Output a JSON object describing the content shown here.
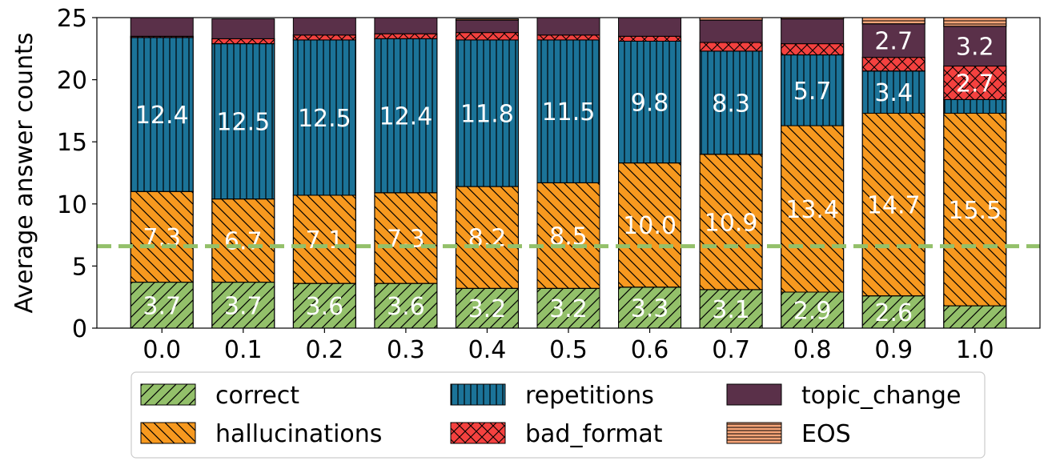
{
  "chart_data": {
    "type": "bar",
    "stacked": true,
    "title": "",
    "xlabel": "",
    "ylabel": "Average answer counts",
    "ylim": [
      0,
      25
    ],
    "yticks": [
      0,
      5,
      10,
      15,
      20,
      25
    ],
    "categories": [
      "0.0",
      "0.1",
      "0.2",
      "0.3",
      "0.4",
      "0.5",
      "0.6",
      "0.7",
      "0.8",
      "0.9",
      "1.0"
    ],
    "reference_line": {
      "y": 6.6,
      "style": "dashed",
      "color": "#93c06a"
    },
    "series": [
      {
        "name": "correct",
        "color": "#93c06a",
        "hatch": "diagonal-forward",
        "values": [
          3.7,
          3.7,
          3.6,
          3.6,
          3.2,
          3.2,
          3.3,
          3.1,
          2.9,
          2.6,
          1.8
        ],
        "labels": [
          "3.7",
          "3.7",
          "3.6",
          "3.6",
          "3.2",
          "3.2",
          "3.3",
          "3.1",
          "2.9",
          "2.6",
          ""
        ]
      },
      {
        "name": "hallucinations",
        "color": "#f7991f",
        "hatch": "diagonal-back",
        "values": [
          7.3,
          6.7,
          7.1,
          7.3,
          8.2,
          8.5,
          10.0,
          10.9,
          13.4,
          14.7,
          15.5
        ],
        "labels": [
          "7.3",
          "6.7",
          "7.1",
          "7.3",
          "8.2",
          "8.5",
          "10.0",
          "10.9",
          "13.4",
          "14.7",
          "15.5"
        ]
      },
      {
        "name": "repetitions",
        "color": "#1b7398",
        "hatch": "vertical",
        "values": [
          12.4,
          12.5,
          12.5,
          12.4,
          11.8,
          11.5,
          9.8,
          8.3,
          5.7,
          3.4,
          1.1
        ],
        "labels": [
          "12.4",
          "12.5",
          "12.5",
          "12.4",
          "11.8",
          "11.5",
          "9.8",
          "8.3",
          "5.7",
          "3.4",
          ""
        ]
      },
      {
        "name": "bad_format",
        "color": "#f4413f",
        "hatch": "cross",
        "values": [
          0.1,
          0.4,
          0.4,
          0.4,
          0.6,
          0.4,
          0.4,
          0.7,
          0.9,
          1.1,
          2.7
        ],
        "labels": [
          "",
          "",
          "",
          "",
          "",
          "",
          "",
          "",
          "",
          "",
          "2.7"
        ]
      },
      {
        "name": "topic_change",
        "color": "#5a3049",
        "hatch": "none",
        "values": [
          1.5,
          1.6,
          1.4,
          1.3,
          1.0,
          1.4,
          1.5,
          1.8,
          2.0,
          2.7,
          3.2
        ],
        "labels": [
          "",
          "",
          "",
          "",
          "",
          "",
          "",
          "",
          "",
          "2.7",
          "3.2"
        ]
      },
      {
        "name": "EOS",
        "color": "#f7a578",
        "hatch": "horizontal",
        "values": [
          0.0,
          0.0,
          0.0,
          0.0,
          0.1,
          0.0,
          0.0,
          0.2,
          0.1,
          0.5,
          0.7
        ],
        "labels": [
          "",
          "",
          "",
          "",
          "",
          "",
          "",
          "",
          "",
          "",
          ""
        ]
      }
    ],
    "legend": {
      "placement": "bottom-center",
      "columns": 3,
      "entries": [
        "correct",
        "hallucinations",
        "repetitions",
        "bad_format",
        "topic_change",
        "EOS"
      ]
    }
  }
}
